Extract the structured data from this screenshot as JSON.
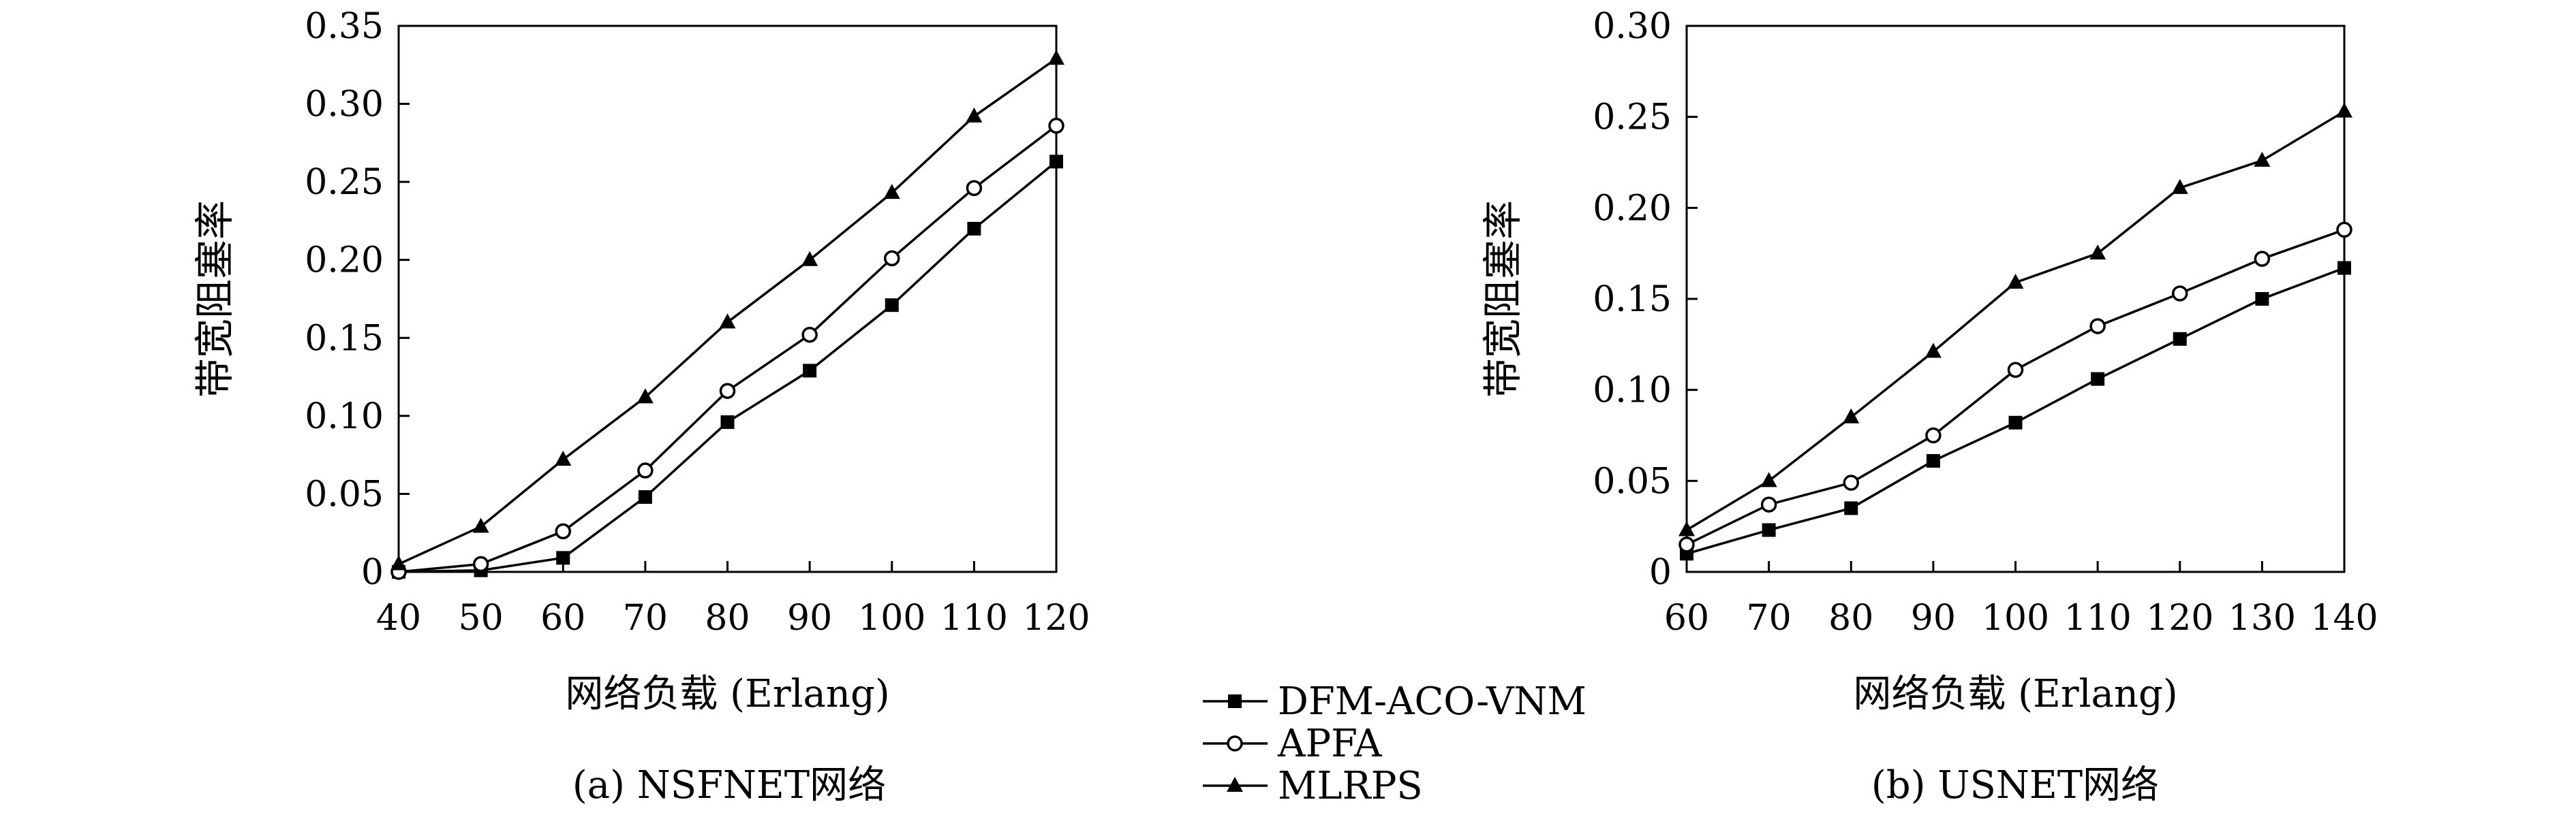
{
  "legend": {
    "items": [
      {
        "label": "DFM-ACO-VNM",
        "marker": "square-filled"
      },
      {
        "label": "APFA",
        "marker": "circle-open"
      },
      {
        "label": "MLRPS",
        "marker": "triangle-filled"
      }
    ],
    "placement": "bottom-center"
  },
  "chart_data": [
    {
      "type": "line",
      "caption": "(a) NSFNET网络",
      "xlabel": "网络负载 (Erlang)",
      "ylabel": "带宽阻塞率",
      "x": [
        40,
        50,
        60,
        70,
        80,
        90,
        100,
        110,
        120
      ],
      "xlim": [
        40,
        120
      ],
      "ylim": [
        0,
        0.35
      ],
      "xticks": [
        "40",
        "50",
        "60",
        "70",
        "80",
        "90",
        "100",
        "110",
        "120"
      ],
      "yticks": [
        "0",
        "0.05",
        "0.10",
        "0.15",
        "0.20",
        "0.25",
        "0.30",
        "0.35"
      ],
      "yticks_values": [
        0,
        0.05,
        0.1,
        0.15,
        0.2,
        0.25,
        0.3,
        0.35
      ],
      "grid": false,
      "series": [
        {
          "name": "DFM-ACO-VNM",
          "marker": "square-filled",
          "values": [
            0.0,
            0.001,
            0.009,
            0.048,
            0.096,
            0.129,
            0.171,
            0.22,
            0.263
          ]
        },
        {
          "name": "APFA",
          "marker": "circle-open",
          "values": [
            0.0,
            0.005,
            0.026,
            0.065,
            0.116,
            0.152,
            0.201,
            0.246,
            0.286
          ]
        },
        {
          "name": "MLRPS",
          "marker": "triangle-filled",
          "values": [
            0.005,
            0.029,
            0.072,
            0.112,
            0.16,
            0.2,
            0.243,
            0.292,
            0.329
          ]
        }
      ]
    },
    {
      "type": "line",
      "caption": "(b) USNET网络",
      "xlabel": "网络负载 (Erlang)",
      "ylabel": "带宽阻塞率",
      "x": [
        60,
        70,
        80,
        90,
        100,
        110,
        120,
        130,
        140
      ],
      "xlim": [
        60,
        140
      ],
      "ylim": [
        0,
        0.3
      ],
      "xticks": [
        "60",
        "70",
        "80",
        "90",
        "100",
        "110",
        "120",
        "130",
        "140"
      ],
      "yticks": [
        "0",
        "0.05",
        "0.10",
        "0.15",
        "0.20",
        "0.25",
        "0.30"
      ],
      "yticks_values": [
        0,
        0.05,
        0.1,
        0.15,
        0.2,
        0.25,
        0.3
      ],
      "grid": false,
      "series": [
        {
          "name": "DFM-ACO-VNM",
          "marker": "square-filled",
          "values": [
            0.01,
            0.023,
            0.035,
            0.061,
            0.082,
            0.106,
            0.128,
            0.15,
            0.167
          ]
        },
        {
          "name": "APFA",
          "marker": "circle-open",
          "values": [
            0.015,
            0.037,
            0.049,
            0.075,
            0.111,
            0.135,
            0.153,
            0.172,
            0.188
          ]
        },
        {
          "name": "MLRPS",
          "marker": "triangle-filled",
          "values": [
            0.023,
            0.05,
            0.085,
            0.121,
            0.159,
            0.175,
            0.211,
            0.226,
            0.253
          ]
        }
      ]
    }
  ]
}
